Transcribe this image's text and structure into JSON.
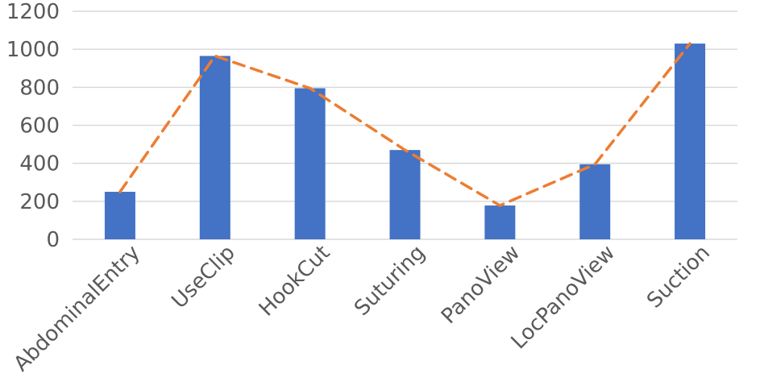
{
  "chart_data": {
    "type": "bar",
    "title": "",
    "xlabel": "",
    "ylabel": "",
    "categories": [
      "AbdominalEntry",
      "UseClip",
      "HookCut",
      "Suturing",
      "PanoView",
      "LocPanoView",
      "Suction"
    ],
    "series": [
      {
        "type": "bar",
        "values": [
          250,
          965,
          795,
          470,
          178,
          395,
          1030
        ],
        "color": "#4472c4"
      },
      {
        "type": "line",
        "style": "dashed",
        "values": [
          250,
          965,
          795,
          470,
          178,
          395,
          1030
        ],
        "color": "#ed7d31"
      }
    ],
    "ylim": [
      0,
      1200
    ],
    "yticks": [
      0,
      200,
      400,
      600,
      800,
      1000,
      1200
    ],
    "ytick_labels": [
      "0",
      "200",
      "400",
      "600",
      "800",
      "1000",
      "1200"
    ],
    "grid": true,
    "legend": "none"
  }
}
